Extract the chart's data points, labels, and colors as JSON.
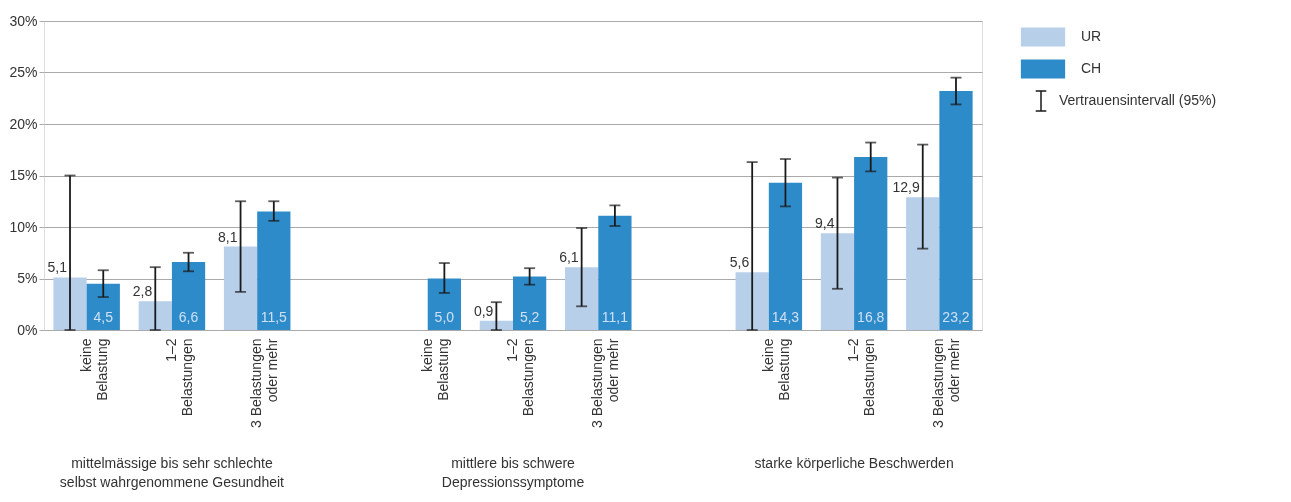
{
  "chart_data": {
    "type": "bar",
    "categories": [
      "keine Belastung",
      "1–2 Belastungen",
      "3 Belastungen oder mehr",
      null,
      "keine Belastung",
      "1–2 Belastungen",
      "3 Belastungen oder mehr",
      null,
      "keine Belastung",
      "1–2 Belastungen",
      "3 Belastungen oder mehr"
    ],
    "series": [
      {
        "name": "UR",
        "color": "#b8cfea",
        "values": [
          5.1,
          2.8,
          8.1,
          null,
          null,
          0.9,
          6.1,
          null,
          5.6,
          9.4,
          12.9
        ],
        "errors": [
          [
            0,
            15.0
          ],
          [
            0,
            6.1
          ],
          [
            3.7,
            12.5
          ],
          null,
          null,
          [
            0,
            2.7
          ],
          [
            2.3,
            9.9
          ],
          null,
          [
            0,
            16.3
          ],
          [
            4.0,
            14.8
          ],
          [
            7.9,
            18.0
          ]
        ],
        "value_labels": [
          "5,1",
          "2,8",
          "8,1",
          null,
          null,
          "0,9",
          "6,1",
          null,
          "5,6",
          "9,4",
          "12,9"
        ]
      },
      {
        "name": "CH",
        "color": "#2e8bc9",
        "values": [
          4.5,
          6.6,
          11.5,
          null,
          5.0,
          5.2,
          11.1,
          null,
          14.3,
          16.8,
          23.2
        ],
        "errors": [
          [
            3.2,
            5.8
          ],
          [
            5.7,
            7.5
          ],
          [
            10.6,
            12.5
          ],
          null,
          [
            3.6,
            6.5
          ],
          [
            4.4,
            6.0
          ],
          [
            10.1,
            12.1
          ],
          null,
          [
            12.0,
            16.6
          ],
          [
            15.4,
            18.2
          ],
          [
            21.9,
            24.5
          ]
        ],
        "value_labels": [
          "4,5",
          "6,6",
          "11,5",
          null,
          "5,0",
          "5,2",
          "11,1",
          null,
          "14,3",
          "16,8",
          "23,2"
        ]
      }
    ],
    "ylim": [
      0,
      30
    ],
    "yticks": [
      {
        "value": 0,
        "label": "0%"
      },
      {
        "value": 5,
        "label": "5%"
      },
      {
        "value": 10,
        "label": "10%"
      },
      {
        "value": 15,
        "label": "15%"
      },
      {
        "value": 20,
        "label": "20%"
      },
      {
        "value": 25,
        "label": "25%"
      },
      {
        "value": 30,
        "label": "30%"
      }
    ],
    "grid": "y",
    "legend": "right",
    "annotations": [
      "mittelmässige bis sehr schlechte selbst wahrgenommene Gesundheit",
      "mittlere bis schwere Depressionssymptome",
      "starke körperliche Beschwerden",
      "Vertrauensintervall (95%)"
    ]
  }
}
